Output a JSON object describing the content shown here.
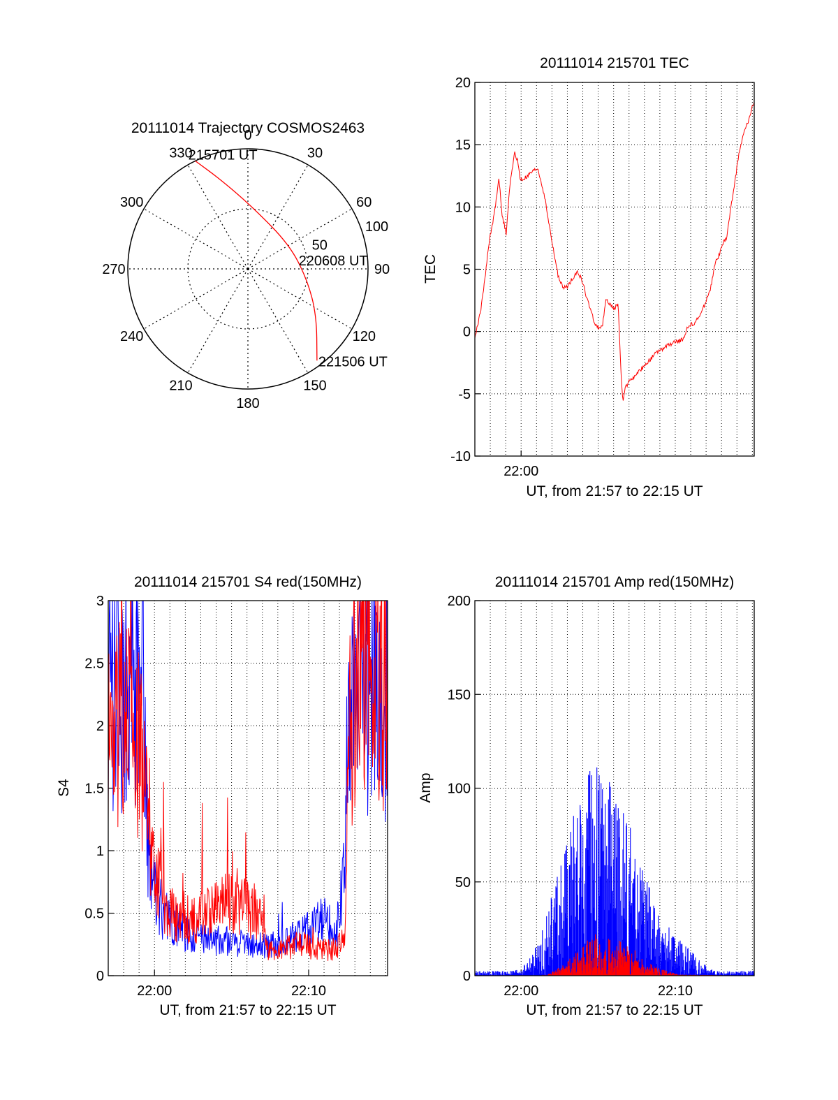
{
  "colors": {
    "red_series": "#ff0000",
    "blue_series": "#0000ff",
    "axes": "#000000",
    "grid": "#000000",
    "background": "#ffffff"
  },
  "chart_data": [
    {
      "type": "polar",
      "title": "20111014 Trajectory COSMOS2463",
      "azimuth_ticks": [
        "0",
        "30",
        "60",
        "90",
        "120",
        "150",
        "180",
        "210",
        "240",
        "270",
        "300",
        "330"
      ],
      "elevation_ring_labels": [
        "50",
        "100"
      ],
      "trajectory": {
        "color": "#ff0000",
        "points": [
          {
            "azimuth": 334,
            "elevation": 0
          },
          {
            "azimuth": 343,
            "elevation": 20
          },
          {
            "azimuth": 5,
            "elevation": 44
          },
          {
            "azimuth": 60,
            "elevation": 54
          },
          {
            "azimuth": 100,
            "elevation": 45
          },
          {
            "azimuth": 124,
            "elevation": 28
          },
          {
            "azimuth": 143,
            "elevation": 4
          }
        ]
      },
      "time_labels": [
        {
          "text": "215701 UT",
          "azimuth": 334,
          "elevation": 0
        },
        {
          "text": "220608 UT",
          "azimuth": 100,
          "elevation": 45
        },
        {
          "text": "221506 UT",
          "azimuth": 143,
          "elevation": 4
        }
      ],
      "grid": true
    },
    {
      "type": "line",
      "title": "20111014 215701 TEC",
      "xlabel": "UT, from 21:57 to 22:15 UT",
      "ylabel": "TEC",
      "xlim": [
        21.95,
        22.252
      ],
      "ylim": [
        -10,
        20
      ],
      "yticks": [
        -10,
        -5,
        0,
        5,
        10,
        15,
        20
      ],
      "x_tick_labels": [
        {
          "x": 22.0,
          "label": "22:00"
        }
      ],
      "grid": true,
      "series": [
        {
          "color": "#ff0000",
          "x": [
            21.95,
            21.953,
            21.957,
            21.962,
            21.966,
            21.97,
            21.973,
            21.976,
            21.979,
            21.982,
            21.984,
            21.987,
            21.99,
            21.993,
            21.996,
            21.999,
            22.002,
            22.006,
            22.012,
            22.018,
            22.025,
            22.03,
            22.035,
            22.04,
            22.045,
            22.05,
            22.055,
            22.06,
            22.065,
            22.07,
            22.075,
            22.08,
            22.084,
            22.086,
            22.088,
            22.092,
            22.096,
            22.1,
            22.105,
            22.108,
            22.11,
            22.113,
            22.118,
            22.124,
            22.13,
            22.135,
            22.14,
            22.145,
            22.15,
            22.155,
            22.16,
            22.165,
            22.17,
            22.175,
            22.18,
            22.185,
            22.188,
            22.19,
            22.195,
            22.2,
            22.205,
            22.21,
            22.215,
            22.218,
            22.222,
            22.227,
            22.231,
            22.236,
            22.241,
            22.246,
            22.252
          ],
          "y": [
            -0.5,
            0.5,
            2,
            5,
            7.5,
            9,
            10.5,
            12.5,
            9.5,
            8.5,
            7.8,
            11,
            13,
            14.3,
            13.8,
            12.2,
            12.2,
            12.4,
            12.8,
            13.1,
            11,
            8.7,
            6.5,
            4.5,
            3.5,
            3.6,
            4.2,
            4.8,
            4.3,
            3,
            1.7,
            0.6,
            0.3,
            0.4,
            0.5,
            2.6,
            2.2,
            1.8,
            2.2,
            -3.5,
            -5.5,
            -4.5,
            -3.8,
            -3.6,
            -3,
            -2.6,
            -2.2,
            -1.8,
            -1.5,
            -1.3,
            -1.1,
            -0.9,
            -0.8,
            -0.6,
            0.3,
            0.6,
            0.7,
            0.9,
            1.5,
            2.5,
            3.5,
            5.5,
            6.3,
            7,
            7.5,
            10,
            12,
            14.5,
            16,
            17,
            18.5
          ]
        }
      ]
    },
    {
      "type": "line",
      "title": "20111014 215701 S4 red(150MHz)",
      "xlabel": "UT, from 21:57 to 22:15 UT",
      "ylabel": "S4",
      "xlim": [
        21.95,
        22.252
      ],
      "ylim": [
        0,
        3
      ],
      "yticks": [
        0,
        0.5,
        1,
        1.5,
        2,
        2.5,
        3
      ],
      "ytick_labels": [
        "0",
        "0.5",
        "1",
        "1.5",
        "2",
        "2.5",
        "3"
      ],
      "x_tick_labels": [
        {
          "x": 22.0,
          "label": "22:00"
        },
        {
          "x": 22.16667,
          "label": "22:10"
        }
      ],
      "grid": true,
      "series": [
        {
          "color": "#0000ff",
          "x": [
            21.95,
            21.96,
            21.97,
            21.98,
            21.988,
            21.992,
            21.995,
            22.0,
            22.01,
            22.02,
            22.03,
            22.04,
            22.05,
            22.06,
            22.07,
            22.08,
            22.09,
            22.1,
            22.11,
            22.12,
            22.13,
            22.14,
            22.15,
            22.16,
            22.17,
            22.18,
            22.19,
            22.195,
            22.2,
            22.205,
            22.21,
            22.22,
            22.23,
            22.24,
            22.252
          ],
          "y": [
            2.1,
            2.3,
            2.4,
            2.2,
            2.2,
            1.1,
            0.8,
            0.65,
            0.5,
            0.42,
            0.35,
            0.33,
            0.3,
            0.29,
            0.28,
            0.28,
            0.27,
            0.26,
            0.25,
            0.25,
            0.25,
            0.26,
            0.3,
            0.33,
            0.38,
            0.45,
            0.42,
            0.35,
            0.45,
            1.0,
            2.1,
            2.4,
            2.3,
            2.1,
            2.0
          ]
        },
        {
          "color": "#ff0000",
          "x": [
            21.95,
            21.96,
            21.97,
            21.98,
            21.99,
            21.995,
            22.0,
            22.01,
            22.02,
            22.03,
            22.04,
            22.05,
            22.06,
            22.07,
            22.08,
            22.09,
            22.1,
            22.11,
            22.118,
            22.122,
            22.13,
            22.14,
            22.15,
            22.16,
            22.17,
            22.18,
            22.19,
            22.2,
            22.206,
            22.21,
            22.22,
            22.23,
            22.24,
            22.252
          ],
          "y": [
            1.8,
            2.0,
            2.1,
            1.9,
            1.6,
            1.2,
            0.8,
            0.6,
            0.5,
            0.45,
            0.45,
            0.48,
            0.5,
            0.55,
            0.6,
            0.6,
            0.55,
            0.5,
            0.5,
            0.22,
            0.2,
            0.22,
            0.25,
            0.25,
            0.22,
            0.22,
            0.2,
            0.24,
            0.3,
            2.0,
            2.5,
            2.6,
            2.4,
            2.3
          ]
        }
      ]
    },
    {
      "type": "area",
      "title": "20111014 215701 Amp red(150MHz)",
      "xlabel": "UT, from 21:57 to 22:15 UT",
      "ylabel": "Amp",
      "xlim": [
        21.95,
        22.252
      ],
      "ylim": [
        0,
        200
      ],
      "yticks": [
        0,
        50,
        100,
        150,
        200
      ],
      "x_tick_labels": [
        {
          "x": 22.0,
          "label": "22:00"
        },
        {
          "x": 22.16667,
          "label": "22:10"
        }
      ],
      "grid": true,
      "series": [
        {
          "color": "#0000ff",
          "x": [
            21.95,
            21.99,
            22.0,
            22.01,
            22.02,
            22.03,
            22.04,
            22.05,
            22.06,
            22.07,
            22.08,
            22.09,
            22.1,
            22.11,
            22.12,
            22.13,
            22.14,
            22.15,
            22.16,
            22.17,
            22.18,
            22.19,
            22.2,
            22.21,
            22.252
          ],
          "y": [
            2,
            2,
            3,
            8,
            15,
            30,
            45,
            60,
            70,
            80,
            90,
            85,
            75,
            70,
            60,
            45,
            35,
            25,
            20,
            15,
            12,
            8,
            4,
            2,
            2
          ]
        },
        {
          "color": "#ff0000",
          "x": [
            21.95,
            22.02,
            22.03,
            22.04,
            22.05,
            22.06,
            22.07,
            22.08,
            22.09,
            22.1,
            22.11,
            22.12,
            22.13,
            22.14,
            22.16,
            22.17,
            22.252
          ],
          "y": [
            0,
            0,
            1,
            3,
            6,
            10,
            14,
            18,
            16,
            15,
            14,
            12,
            8,
            5,
            2,
            0.5,
            0
          ]
        }
      ]
    }
  ]
}
